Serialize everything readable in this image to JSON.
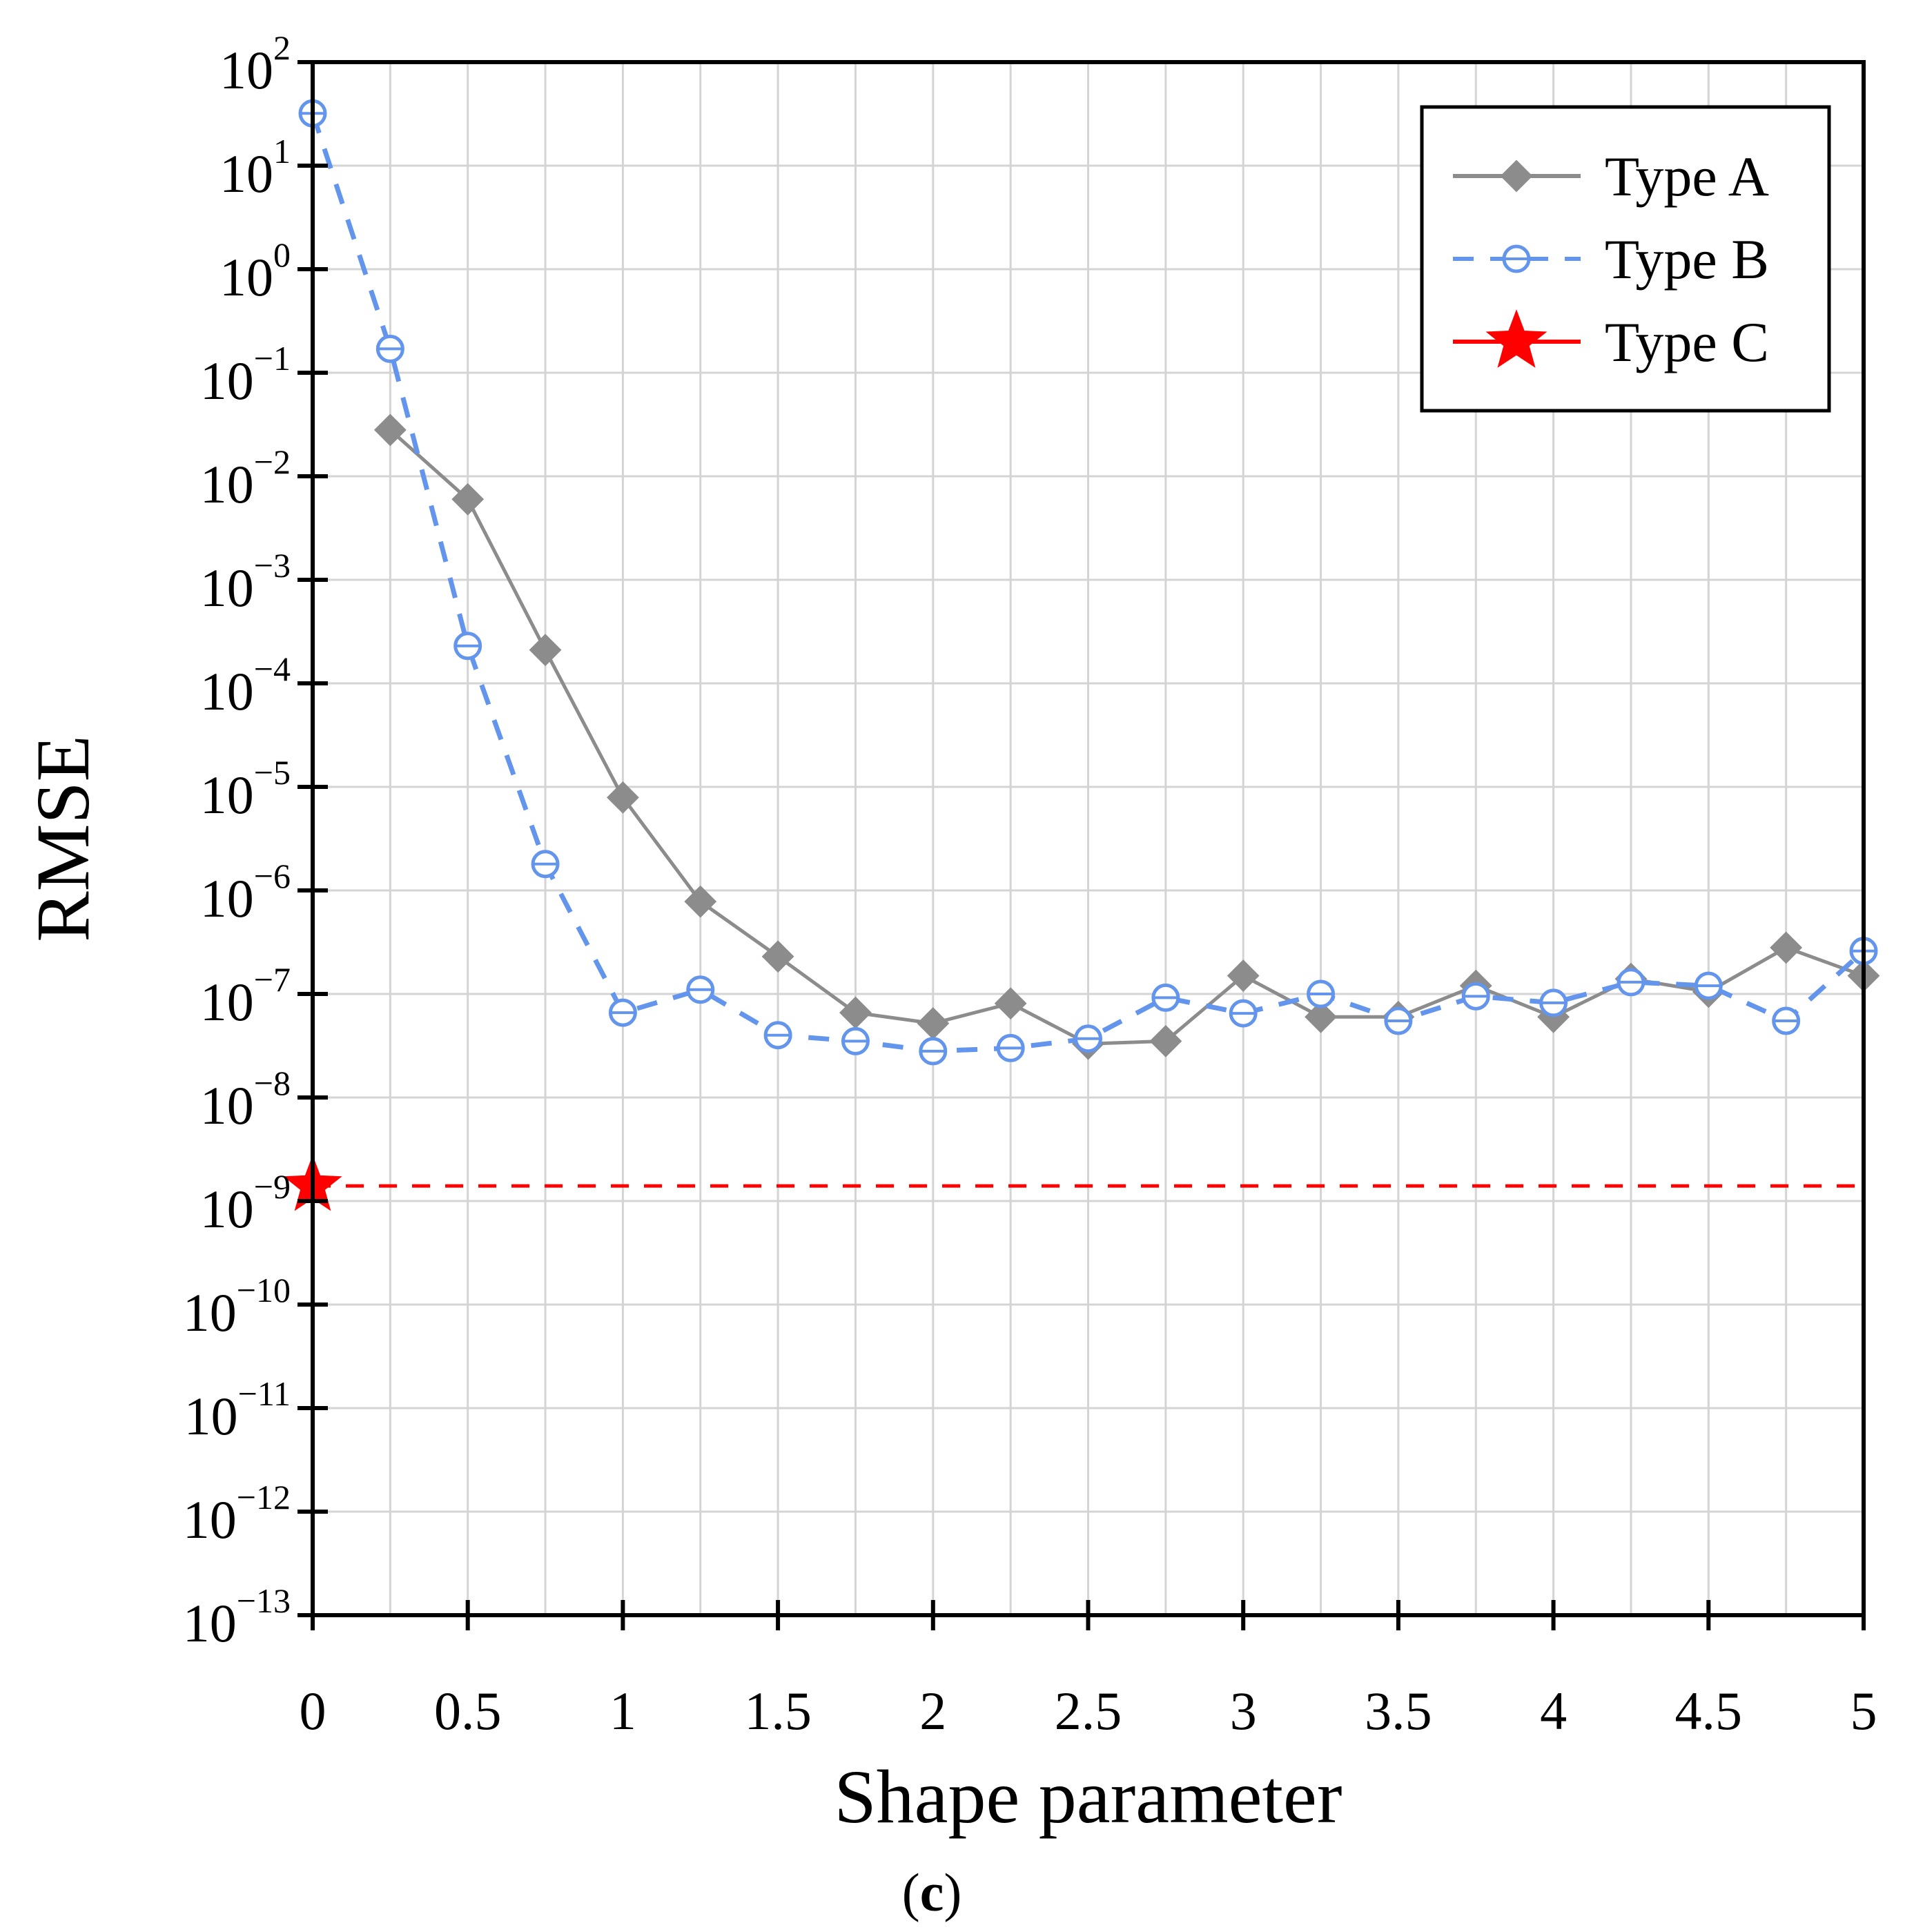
{
  "chart_data": {
    "type": "line",
    "title": "",
    "xlabel": "Shape parameter",
    "ylabel": "RMSE",
    "panel_label": "c",
    "yscale": "log",
    "xlim": [
      0,
      5
    ],
    "ylim_exponents": [
      -13,
      2
    ],
    "x_ticks": [
      {
        "value": 0,
        "label": "0"
      },
      {
        "value": 0.5,
        "label": "0.5"
      },
      {
        "value": 1,
        "label": "1"
      },
      {
        "value": 1.5,
        "label": "1.5"
      },
      {
        "value": 2,
        "label": "2"
      },
      {
        "value": 2.5,
        "label": "2.5"
      },
      {
        "value": 3,
        "label": "3"
      },
      {
        "value": 3.5,
        "label": "3.5"
      },
      {
        "value": 4,
        "label": "4"
      },
      {
        "value": 4.5,
        "label": "4.5"
      },
      {
        "value": 5,
        "label": "5"
      }
    ],
    "x_grid_values": [
      0.25,
      0.5,
      0.75,
      1,
      1.25,
      1.5,
      1.75,
      2,
      2.25,
      2.5,
      2.75,
      3,
      3.25,
      3.5,
      3.75,
      4,
      4.25,
      4.5,
      4.75,
      5
    ],
    "y_ticks": [
      {
        "exponent": 2,
        "base": "10",
        "sup": "2"
      },
      {
        "exponent": 1,
        "base": "10",
        "sup": "1"
      },
      {
        "exponent": 0,
        "base": "10",
        "sup": "0"
      },
      {
        "exponent": -1,
        "base": "10",
        "sup": "−1"
      },
      {
        "exponent": -2,
        "base": "10",
        "sup": "−2"
      },
      {
        "exponent": -3,
        "base": "10",
        "sup": "−3"
      },
      {
        "exponent": -4,
        "base": "10",
        "sup": "−4"
      },
      {
        "exponent": -5,
        "base": "10",
        "sup": "−5"
      },
      {
        "exponent": -6,
        "base": "10",
        "sup": "−6"
      },
      {
        "exponent": -7,
        "base": "10",
        "sup": "−7"
      },
      {
        "exponent": -8,
        "base": "10",
        "sup": "−8"
      },
      {
        "exponent": -9,
        "base": "10",
        "sup": "−9"
      },
      {
        "exponent": -10,
        "base": "10",
        "sup": "−10"
      },
      {
        "exponent": -11,
        "base": "10",
        "sup": "−11"
      },
      {
        "exponent": -12,
        "base": "10",
        "sup": "−12"
      },
      {
        "exponent": -13,
        "base": "10",
        "sup": "−13"
      }
    ],
    "grid": true,
    "legend_position": "top-right",
    "series": [
      {
        "name": "Type A",
        "color": "#8c8c8c",
        "line_style": "solid",
        "marker": "diamond",
        "x": [
          0.25,
          0.5,
          0.75,
          1,
          1.25,
          1.5,
          1.75,
          2,
          2.25,
          2.5,
          2.75,
          3,
          3.25,
          3.5,
          3.75,
          4,
          4.25,
          4.5,
          4.75,
          5
        ],
        "values": [
          0.028,
          0.006,
          0.00021,
          7.9e-06,
          7.8e-07,
          2.3e-07,
          6.6e-08,
          5.2e-08,
          8.1e-08,
          3.3e-08,
          3.5e-08,
          1.5e-07,
          6e-08,
          6e-08,
          1.2e-07,
          6e-08,
          1.4e-07,
          1.05e-07,
          2.8e-07,
          1.5e-07
        ]
      },
      {
        "name": "Type B",
        "color": "#6495ed",
        "line_style": "dashed",
        "marker": "open-circle",
        "x": [
          0,
          0.25,
          0.5,
          0.75,
          1,
          1.25,
          1.5,
          1.75,
          2,
          2.25,
          2.5,
          2.75,
          3,
          3.25,
          3.5,
          3.75,
          4,
          4.25,
          4.5,
          4.75,
          5
        ],
        "values": [
          32,
          0.17,
          0.00023,
          1.8e-06,
          6.6e-08,
          1.1e-07,
          4e-08,
          3.5e-08,
          2.8e-08,
          3e-08,
          3.7e-08,
          9.2e-08,
          6.5e-08,
          1e-07,
          5.5e-08,
          9.5e-08,
          8.2e-08,
          1.3e-07,
          1.2e-07,
          5.5e-08,
          2.6e-07
        ]
      },
      {
        "name": "Type C",
        "color": "#ff0000",
        "line_style": "dashed",
        "marker": "star",
        "x": [
          0
        ],
        "values": [
          1.4e-09
        ],
        "reference_line_value": 1.4e-09
      }
    ]
  }
}
